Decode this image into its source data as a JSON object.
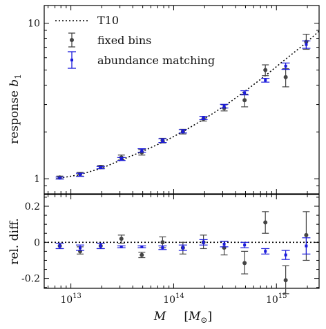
{
  "chart_data": [
    {
      "type": "scatter",
      "panel": "top",
      "ylabel": "response b_1",
      "ylabel_parts": {
        "text": "response ",
        "symbol": "b",
        "sub": "1"
      },
      "xscale": "log",
      "yscale": "log",
      "xlim": [
        5500000000000.0,
        2600000000000000.0
      ],
      "ylim": [
        0.8,
        13
      ],
      "yticks": [
        {
          "value": 1,
          "label": "1"
        },
        {
          "value": 10,
          "label": "10"
        }
      ],
      "legend": {
        "position": "top-left"
      },
      "series": [
        {
          "name": "T10",
          "style": "dotted-line",
          "color": "#000000",
          "x": [
            7200000000000.0,
            12000000000000.0,
            20000000000000.0,
            30000000000000.0,
            50000000000000.0,
            80000000000000.0,
            125000000000000.0,
            200000000000000.0,
            320000000000000.0,
            500000000000000.0,
            780000000000000.0,
            1200000000000000.0,
            1900000000000000.0,
            2600000000000000.0
          ],
          "y": [
            1.0,
            1.06,
            1.17,
            1.31,
            1.5,
            1.73,
            2.02,
            2.43,
            2.97,
            3.68,
            4.6,
            5.8,
            7.4,
            8.9
          ]
        },
        {
          "name": "fixed bins",
          "style": "errorbar",
          "color": "#444444",
          "x": [
            7800000000000.0,
            12300000000000.0,
            19500000000000.0,
            31000000000000.0,
            49000000000000.0,
            78000000000000.0,
            123000000000000.0,
            195000000000000.0,
            310000000000000.0,
            490000000000000.0,
            780000000000000.0,
            1230000000000000.0,
            1950000000000000.0
          ],
          "y": [
            1.02,
            1.07,
            1.19,
            1.37,
            1.48,
            1.76,
            2.01,
            2.43,
            2.85,
            3.2,
            5.0,
            4.5,
            7.6
          ],
          "yerr_low": [
            1.0,
            1.04,
            1.16,
            1.32,
            1.42,
            1.7,
            1.94,
            2.35,
            2.73,
            2.9,
            4.6,
            3.9,
            6.8
          ],
          "yerr_high": [
            1.04,
            1.1,
            1.22,
            1.42,
            1.54,
            1.82,
            2.08,
            2.52,
            2.99,
            3.5,
            5.4,
            5.1,
            8.5
          ]
        },
        {
          "name": "abundance matching",
          "style": "errorbar",
          "color": "#1a1adb",
          "x": [
            7800000000000.0,
            12300000000000.0,
            19500000000000.0,
            31000000000000.0,
            49000000000000.0,
            78000000000000.0,
            123000000000000.0,
            195000000000000.0,
            310000000000000.0,
            490000000000000.0,
            780000000000000.0,
            1230000000000000.0,
            1950000000000000.0
          ],
          "y": [
            1.01,
            1.06,
            1.18,
            1.34,
            1.52,
            1.76,
            2.02,
            2.46,
            2.93,
            3.57,
            4.3,
            5.3,
            7.3
          ],
          "yerr_low": [
            0.995,
            1.035,
            1.16,
            1.31,
            1.48,
            1.71,
            1.97,
            2.4,
            2.85,
            3.46,
            4.18,
            5.05,
            6.9
          ],
          "yerr_high": [
            1.025,
            1.085,
            1.2,
            1.37,
            1.56,
            1.81,
            2.07,
            2.52,
            3.01,
            3.68,
            4.42,
            5.55,
            7.7
          ]
        }
      ]
    },
    {
      "type": "scatter",
      "panel": "bottom",
      "ylabel": "rel. diff.",
      "xlabel": "M   [M_⊙]",
      "xlabel_parts": {
        "symbol": "M",
        "unit_open": "[",
        "unit_symbol": "M",
        "unit_sub": "⊙",
        "unit_close": "]"
      },
      "xscale": "log",
      "xlim": [
        5500000000000.0,
        2600000000000000.0
      ],
      "ylim": [
        -0.255,
        0.265
      ],
      "xticks": [
        {
          "value": 10000000000000.0,
          "base": "10",
          "exp": "13"
        },
        {
          "value": 100000000000000.0,
          "base": "10",
          "exp": "14"
        },
        {
          "value": 1000000000000000.0,
          "base": "10",
          "exp": "15"
        }
      ],
      "yticks": [
        {
          "value": 0.2,
          "label": "0.2"
        },
        {
          "value": 0,
          "label": "0"
        },
        {
          "value": -0.2,
          "label": "-0.2"
        }
      ],
      "series": [
        {
          "name": "T10",
          "style": "dotted-line",
          "color": "#000000",
          "x": [
            5500000000000.0,
            2600000000000000.0
          ],
          "y": [
            0,
            0
          ]
        },
        {
          "name": "fixed bins",
          "style": "errorbar",
          "color": "#444444",
          "x": [
            7800000000000.0,
            12300000000000.0,
            19500000000000.0,
            31000000000000.0,
            49000000000000.0,
            78000000000000.0,
            123000000000000.0,
            195000000000000.0,
            310000000000000.0,
            490000000000000.0,
            780000000000000.0,
            1230000000000000.0,
            1950000000000000.0
          ],
          "y": [
            -0.02,
            -0.05,
            -0.02,
            0.02,
            -0.07,
            0.0,
            -0.03,
            0.0,
            -0.03,
            -0.115,
            0.11,
            -0.21,
            0.04
          ],
          "yerr_low": [
            -0.035,
            -0.065,
            -0.035,
            -0.005,
            -0.085,
            -0.03,
            -0.065,
            -0.035,
            -0.07,
            -0.175,
            0.05,
            -0.285,
            -0.1
          ],
          "yerr_high": [
            -0.005,
            -0.025,
            -0.005,
            0.04,
            -0.055,
            0.03,
            0.0,
            0.04,
            0.005,
            -0.05,
            0.17,
            -0.13,
            0.17
          ]
        },
        {
          "name": "abundance matching",
          "style": "errorbar",
          "color": "#1a1adb",
          "x": [
            7800000000000.0,
            12300000000000.0,
            19500000000000.0,
            31000000000000.0,
            49000000000000.0,
            78000000000000.0,
            123000000000000.0,
            195000000000000.0,
            310000000000000.0,
            490000000000000.0,
            780000000000000.0,
            1230000000000000.0,
            1950000000000000.0
          ],
          "y": [
            -0.02,
            -0.03,
            -0.02,
            -0.025,
            -0.025,
            -0.03,
            -0.03,
            0.0,
            -0.01,
            -0.015,
            -0.05,
            -0.07,
            -0.02
          ],
          "yerr_low": [
            -0.035,
            -0.045,
            -0.035,
            -0.03,
            -0.03,
            -0.04,
            -0.045,
            -0.015,
            -0.025,
            -0.03,
            -0.065,
            -0.095,
            -0.065
          ],
          "yerr_high": [
            -0.005,
            -0.015,
            -0.005,
            -0.02,
            -0.02,
            -0.02,
            -0.015,
            0.015,
            0.005,
            0.0,
            -0.035,
            -0.045,
            0.025
          ]
        }
      ]
    }
  ]
}
